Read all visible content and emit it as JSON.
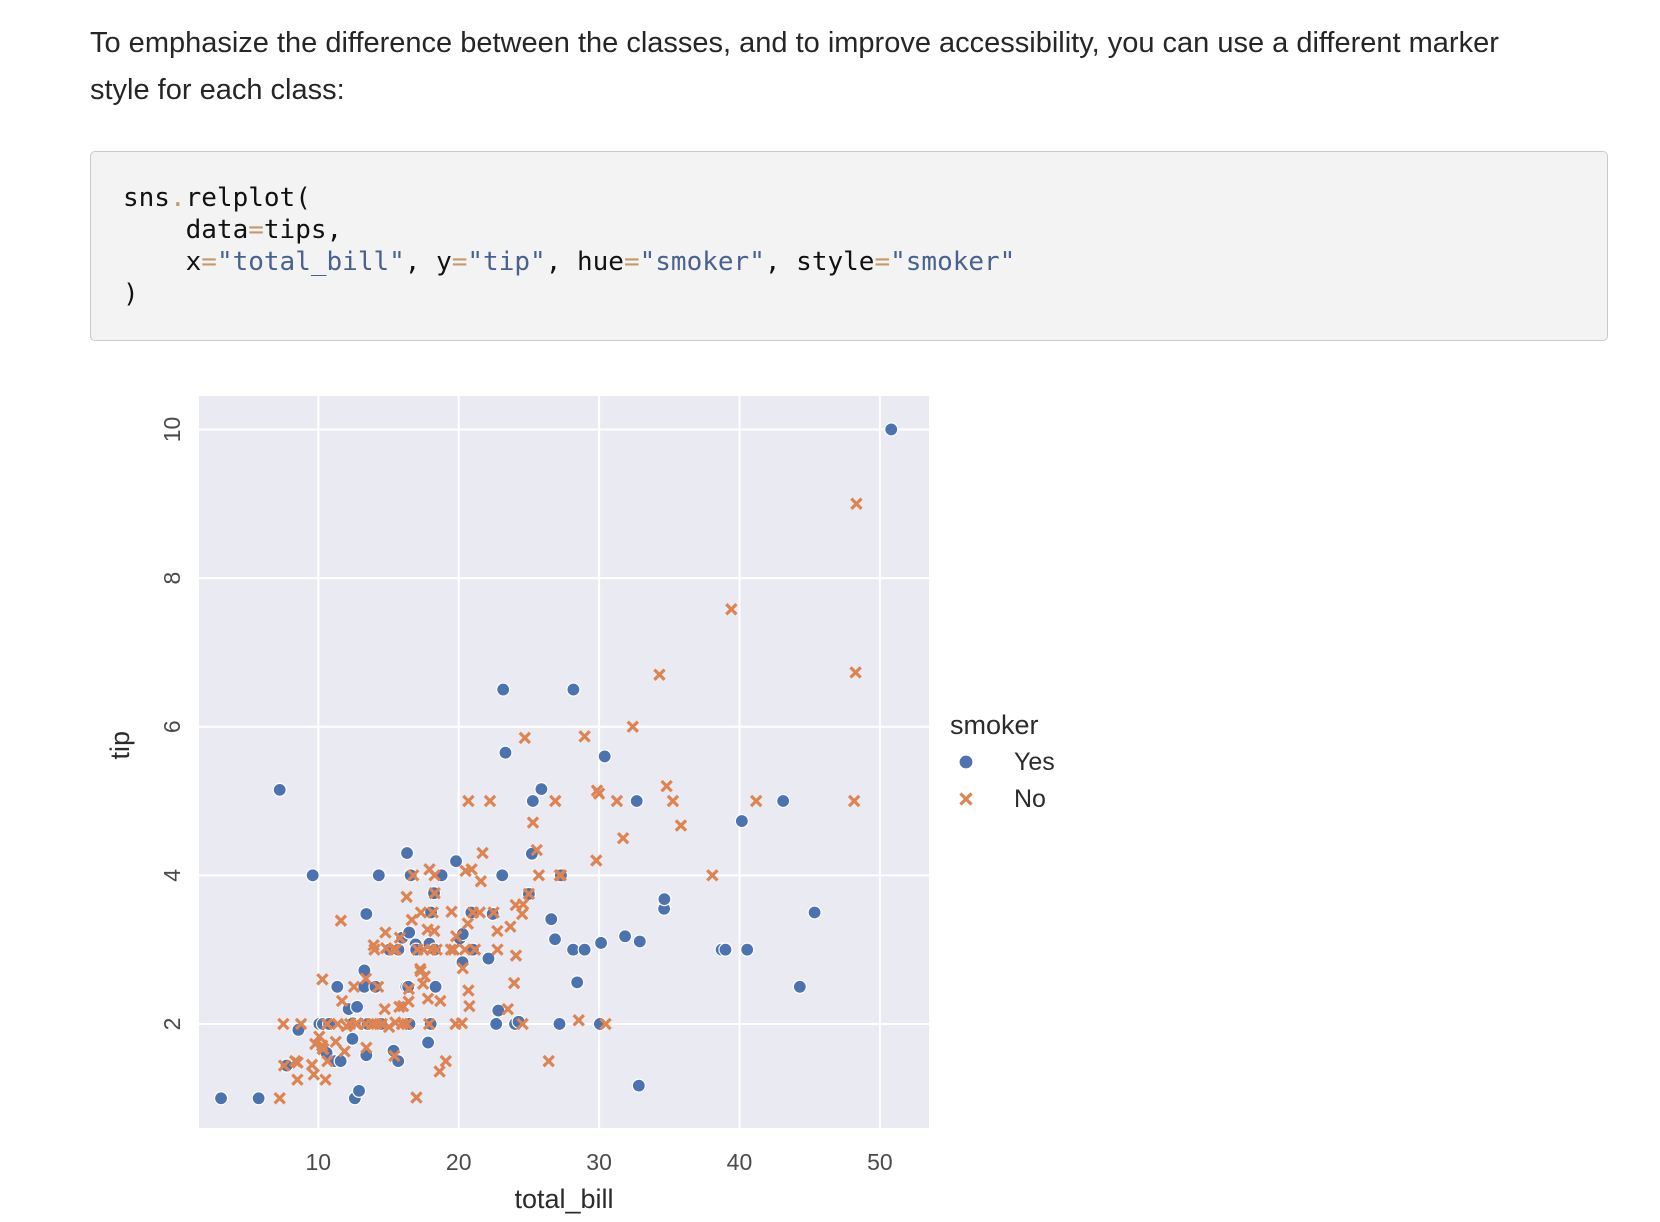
{
  "intro": {
    "line1": "To emphasize the difference between the classes, and to improve accessibility, you can use a different marker",
    "line2": "style for each class:"
  },
  "code": {
    "line1_obj": "sns",
    "line1_dot": ".",
    "line1_fn": "relplot(",
    "line2_arg": "data",
    "line2_eq": "=",
    "line2_val": "tips,",
    "line3_x": "x",
    "line3_eq1": "=",
    "line3_xval": "\"total_bill\"",
    "line3_sep1": ", ",
    "line3_y": "y",
    "line3_eq2": "=",
    "line3_yval": "\"tip\"",
    "line3_sep2": ", ",
    "line3_hue": "hue",
    "line3_eq3": "=",
    "line3_hueval": "\"smoker\"",
    "line3_sep3": ", ",
    "line3_style": "style",
    "line3_eq4": "=",
    "line3_styleval": "\"smoker\"",
    "line4": ")"
  },
  "chart_data": {
    "type": "scatter",
    "xlabel": "total_bill",
    "ylabel": "tip",
    "xlim": [
      1.5,
      53.5
    ],
    "ylim": [
      0.6,
      10.45
    ],
    "xticks": [
      10,
      20,
      30,
      40,
      50
    ],
    "yticks": [
      2,
      4,
      6,
      8,
      10
    ],
    "grid": true,
    "background": "#eaeaf2",
    "legend": {
      "title": "smoker",
      "placement": "right"
    },
    "series": [
      {
        "name": "Yes",
        "marker": "circle",
        "color": "#4c72b0",
        "points": [
          [
            3.07,
            1.0
          ],
          [
            5.75,
            1.0
          ],
          [
            7.25,
            5.15
          ],
          [
            7.74,
            1.44
          ],
          [
            8.58,
            1.92
          ],
          [
            9.6,
            4.0
          ],
          [
            10.07,
            2.0
          ],
          [
            10.33,
            2.0
          ],
          [
            10.59,
            1.61
          ],
          [
            10.77,
            2.0
          ],
          [
            11.17,
            1.5
          ],
          [
            11.35,
            2.5
          ],
          [
            11.59,
            1.5
          ],
          [
            12.16,
            2.2
          ],
          [
            12.43,
            1.8
          ],
          [
            12.46,
            2.01
          ],
          [
            12.6,
            1.0
          ],
          [
            12.76,
            2.23
          ],
          [
            12.9,
            1.1
          ],
          [
            13.0,
            2.0
          ],
          [
            13.03,
            2.0
          ],
          [
            13.13,
            2.0
          ],
          [
            13.27,
            2.5
          ],
          [
            13.28,
            2.72
          ],
          [
            13.42,
            1.58
          ],
          [
            13.42,
            3.48
          ],
          [
            13.51,
            2.0
          ],
          [
            14.07,
            2.5
          ],
          [
            14.31,
            4.0
          ],
          [
            14.48,
            2.0
          ],
          [
            15.06,
            3.0
          ],
          [
            15.36,
            1.64
          ],
          [
            15.69,
            1.5
          ],
          [
            15.69,
            3.0
          ],
          [
            15.7,
            3.0
          ],
          [
            15.98,
            3.16
          ],
          [
            16.27,
            2.5
          ],
          [
            16.32,
            4.3
          ],
          [
            16.4,
            2.5
          ],
          [
            16.47,
            3.23
          ],
          [
            16.49,
            2.0
          ],
          [
            16.58,
            4.0
          ],
          [
            16.93,
            3.07
          ],
          [
            16.97,
            3.0
          ],
          [
            17.82,
            1.75
          ],
          [
            17.92,
            3.08
          ],
          [
            18.0,
            2.0
          ],
          [
            18.03,
            3.5
          ],
          [
            18.24,
            3.76
          ],
          [
            18.29,
            3.0
          ],
          [
            18.35,
            2.5
          ],
          [
            18.78,
            4.0
          ],
          [
            19.81,
            4.19
          ],
          [
            20.08,
            3.15
          ],
          [
            20.27,
            2.83
          ],
          [
            20.29,
            3.21
          ],
          [
            20.9,
            3.5
          ],
          [
            21.01,
            3.0
          ],
          [
            22.12,
            2.88
          ],
          [
            22.42,
            3.48
          ],
          [
            22.82,
            2.18
          ],
          [
            23.1,
            4.0
          ],
          [
            23.33,
            5.65
          ],
          [
            24.01,
            2.0
          ],
          [
            24.27,
            2.03
          ],
          [
            25.0,
            3.75
          ],
          [
            25.21,
            4.29
          ],
          [
            25.28,
            5.0
          ],
          [
            25.89,
            5.16
          ],
          [
            26.59,
            3.41
          ],
          [
            26.86,
            3.14
          ],
          [
            27.18,
            2.0
          ],
          [
            27.28,
            4.0
          ],
          [
            28.15,
            3.0
          ],
          [
            28.17,
            6.5
          ],
          [
            28.44,
            2.56
          ],
          [
            28.97,
            3.0
          ],
          [
            30.06,
            2.0
          ],
          [
            30.14,
            3.09
          ],
          [
            30.4,
            5.6
          ],
          [
            31.85,
            3.18
          ],
          [
            32.68,
            5.0
          ],
          [
            32.83,
            1.17
          ],
          [
            32.9,
            3.11
          ],
          [
            34.63,
            3.55
          ],
          [
            34.65,
            3.68
          ],
          [
            38.73,
            3.0
          ],
          [
            40.17,
            4.73
          ],
          [
            40.55,
            3.0
          ],
          [
            43.11,
            5.0
          ],
          [
            44.3,
            2.5
          ],
          [
            45.35,
            3.5
          ],
          [
            50.81,
            10.0
          ],
          [
            23.17,
            6.5
          ],
          [
            22.67,
            2.0
          ],
          [
            39.0,
            3.0
          ]
        ]
      },
      {
        "name": "No",
        "marker": "x",
        "color": "#dd8452",
        "points": [
          [
            7.25,
            1.0
          ],
          [
            7.51,
            2.0
          ],
          [
            7.56,
            1.44
          ],
          [
            8.35,
            1.5
          ],
          [
            8.51,
            1.25
          ],
          [
            8.52,
            1.48
          ],
          [
            8.77,
            2.0
          ],
          [
            9.55,
            1.45
          ],
          [
            9.68,
            1.32
          ],
          [
            9.78,
            1.73
          ],
          [
            10.07,
            1.83
          ],
          [
            10.27,
            1.71
          ],
          [
            10.29,
            2.6
          ],
          [
            10.33,
            1.67
          ],
          [
            10.34,
            1.66
          ],
          [
            10.51,
            1.25
          ],
          [
            10.63,
            2.0
          ],
          [
            10.65,
            1.5
          ],
          [
            11.24,
            1.76
          ],
          [
            11.38,
            2.0
          ],
          [
            11.61,
            3.39
          ],
          [
            11.69,
            2.31
          ],
          [
            11.87,
            1.63
          ],
          [
            12.02,
            1.97
          ],
          [
            12.26,
            2.0
          ],
          [
            12.54,
            2.5
          ],
          [
            12.69,
            2.0
          ],
          [
            12.74,
            2.01
          ],
          [
            13.37,
            2.0
          ],
          [
            13.39,
            2.61
          ],
          [
            13.42,
            1.68
          ],
          [
            13.81,
            2.0
          ],
          [
            13.94,
            3.06
          ],
          [
            14.0,
            3.0
          ],
          [
            14.15,
            2.0
          ],
          [
            14.26,
            2.5
          ],
          [
            14.52,
            2.0
          ],
          [
            14.73,
            2.2
          ],
          [
            14.78,
            3.23
          ],
          [
            14.83,
            3.02
          ],
          [
            15.04,
            1.96
          ],
          [
            15.38,
            3.0
          ],
          [
            15.42,
            1.57
          ],
          [
            15.48,
            2.02
          ],
          [
            15.53,
            3.0
          ],
          [
            15.77,
            2.23
          ],
          [
            15.81,
            3.16
          ],
          [
            15.95,
            2.0
          ],
          [
            16.0,
            2.0
          ],
          [
            16.04,
            2.24
          ],
          [
            16.29,
            3.71
          ],
          [
            16.31,
            2.0
          ],
          [
            16.43,
            2.3
          ],
          [
            16.45,
            2.47
          ],
          [
            16.66,
            3.4
          ],
          [
            16.99,
            1.01
          ],
          [
            17.26,
            2.74
          ],
          [
            17.29,
            2.71
          ],
          [
            17.31,
            3.5
          ],
          [
            17.46,
            2.54
          ],
          [
            17.51,
            3.0
          ],
          [
            17.59,
            2.64
          ],
          [
            17.78,
            3.27
          ],
          [
            17.81,
            2.34
          ],
          [
            17.89,
            2.0
          ],
          [
            17.92,
            4.08
          ],
          [
            18.04,
            3.0
          ],
          [
            18.15,
            3.5
          ],
          [
            18.26,
            3.25
          ],
          [
            18.28,
            4.0
          ],
          [
            18.29,
            3.76
          ],
          [
            18.43,
            3.0
          ],
          [
            18.64,
            1.36
          ],
          [
            18.69,
            2.31
          ],
          [
            19.08,
            1.5
          ],
          [
            19.44,
            3.0
          ],
          [
            19.49,
            3.51
          ],
          [
            19.65,
            3.0
          ],
          [
            19.77,
            2.0
          ],
          [
            19.82,
            3.18
          ],
          [
            20.23,
            2.01
          ],
          [
            20.29,
            2.75
          ],
          [
            20.45,
            3.0
          ],
          [
            20.49,
            4.06
          ],
          [
            20.65,
            3.35
          ],
          [
            20.69,
            2.45
          ],
          [
            20.69,
            5.0
          ],
          [
            20.76,
            2.24
          ],
          [
            20.92,
            4.08
          ],
          [
            21.01,
            3.5
          ],
          [
            21.16,
            3.0
          ],
          [
            21.5,
            3.5
          ],
          [
            21.58,
            3.92
          ],
          [
            21.7,
            4.3
          ],
          [
            22.23,
            5.0
          ],
          [
            22.49,
            3.5
          ],
          [
            22.75,
            3.25
          ],
          [
            22.76,
            3.0
          ],
          [
            23.68,
            3.31
          ],
          [
            23.95,
            2.55
          ],
          [
            24.06,
            3.6
          ],
          [
            24.08,
            2.92
          ],
          [
            24.52,
            3.48
          ],
          [
            24.55,
            2.0
          ],
          [
            24.59,
            3.61
          ],
          [
            24.71,
            5.85
          ],
          [
            25.0,
            3.75
          ],
          [
            25.29,
            4.71
          ],
          [
            25.56,
            4.34
          ],
          [
            25.71,
            4.0
          ],
          [
            26.41,
            1.5
          ],
          [
            26.88,
            5.0
          ],
          [
            27.2,
            4.0
          ],
          [
            27.28,
            4.0
          ],
          [
            28.55,
            2.05
          ],
          [
            28.97,
            5.87
          ],
          [
            29.8,
            4.2
          ],
          [
            29.85,
            5.14
          ],
          [
            30.46,
            2.0
          ],
          [
            31.27,
            5.0
          ],
          [
            31.71,
            4.5
          ],
          [
            32.4,
            6.0
          ],
          [
            34.3,
            6.7
          ],
          [
            34.81,
            5.2
          ],
          [
            35.26,
            5.0
          ],
          [
            35.83,
            4.67
          ],
          [
            38.07,
            4.0
          ],
          [
            39.42,
            7.58
          ],
          [
            41.19,
            5.0
          ],
          [
            48.17,
            5.0
          ],
          [
            48.27,
            6.73
          ],
          [
            48.33,
            9.0
          ],
          [
            30.0,
            5.1
          ],
          [
            17.07,
            3.0
          ],
          [
            23.5,
            2.2
          ],
          [
            16.76,
            4.0
          ]
        ]
      }
    ]
  }
}
